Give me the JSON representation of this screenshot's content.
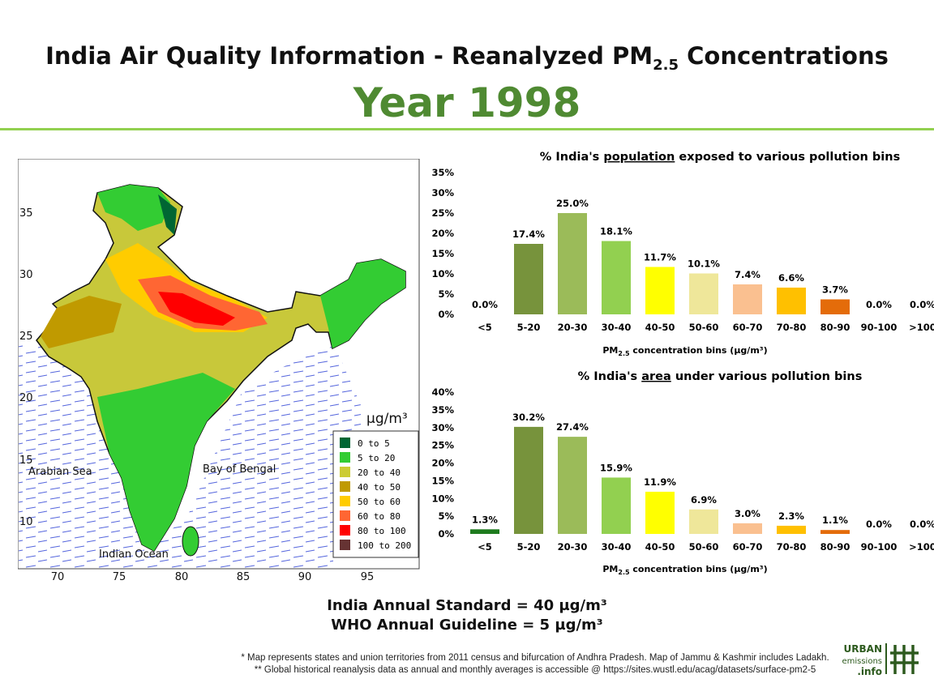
{
  "header": {
    "title_pre": "India Air Quality Information - Reanalyzed PM",
    "title_sub": "2.5",
    "title_post": " Concentrations",
    "year": "Year 1998"
  },
  "map": {
    "x_ticks": [
      "70",
      "75",
      "80",
      "85",
      "90",
      "95"
    ],
    "y_ticks": [
      "35",
      "30",
      "25",
      "20",
      "15",
      "10"
    ],
    "unit": "µg/m³",
    "labels": {
      "arabian_sea": "Arabian Sea",
      "bay_of_bengal": "Bay of Bengal",
      "indian_ocean": "Indian Ocean"
    },
    "legend": [
      {
        "label": "0  to  5",
        "color": "#006633"
      },
      {
        "label": "5  to  20",
        "color": "#33cc33"
      },
      {
        "label": "20  to  40",
        "color": "#cccc33"
      },
      {
        "label": "40  to  50",
        "color": "#c09a00"
      },
      {
        "label": "50  to  60",
        "color": "#ffcc00"
      },
      {
        "label": "60  to  80",
        "color": "#ff6633"
      },
      {
        "label": "80  to  100",
        "color": "#ff0000"
      },
      {
        "label": "100  to  200",
        "color": "#663333"
      }
    ]
  },
  "chart_data": [
    {
      "type": "bar",
      "title_pre": "% India's ",
      "title_em": "population",
      "title_post": " exposed to various pollution bins",
      "xlabel_pre": "PM",
      "xlabel_sub": "2.5",
      "xlabel_post": " concentration bins (µg/m³)",
      "categories": [
        "<5",
        "5-20",
        "20-30",
        "30-40",
        "40-50",
        "50-60",
        "60-70",
        "70-80",
        "80-90",
        "90-100",
        ">100"
      ],
      "values": [
        0.0,
        17.4,
        25.0,
        18.1,
        11.7,
        10.1,
        7.4,
        6.6,
        3.7,
        0.0,
        0.0
      ],
      "data_labels": [
        "0.0%",
        "17.4%",
        "25.0%",
        "18.1%",
        "11.7%",
        "10.1%",
        "7.4%",
        "6.6%",
        "3.7%",
        "0.0%",
        "0.0%"
      ],
      "ylim": [
        0,
        35
      ],
      "yticks": [
        "0%",
        "5%",
        "10%",
        "15%",
        "20%",
        "25%",
        "30%",
        "35%"
      ],
      "colors": [
        "#1e7b1e",
        "#77933c",
        "#9bbb59",
        "#92d050",
        "#ffff00",
        "#efe79a",
        "#fac090",
        "#ffc000",
        "#e46c0a",
        "#c0c0c0",
        "#c0c0c0"
      ]
    },
    {
      "type": "bar",
      "title_pre": "% India's ",
      "title_em": "area",
      "title_post": " under various pollution bins",
      "xlabel_pre": "PM",
      "xlabel_sub": "2.5",
      "xlabel_post": " concentration bins (µg/m³)",
      "categories": [
        "<5",
        "5-20",
        "20-30",
        "30-40",
        "40-50",
        "50-60",
        "60-70",
        "70-80",
        "80-90",
        "90-100",
        ">100"
      ],
      "values": [
        1.3,
        30.2,
        27.4,
        15.9,
        11.9,
        6.9,
        3.0,
        2.3,
        1.1,
        0.0,
        0.0
      ],
      "data_labels": [
        "1.3%",
        "30.2%",
        "27.4%",
        "15.9%",
        "11.9%",
        "6.9%",
        "3.0%",
        "2.3%",
        "1.1%",
        "0.0%",
        "0.0%"
      ],
      "ylim": [
        0,
        40
      ],
      "yticks": [
        "0%",
        "5%",
        "10%",
        "15%",
        "20%",
        "25%",
        "30%",
        "35%",
        "40%"
      ],
      "colors": [
        "#1e7b1e",
        "#77933c",
        "#9bbb59",
        "#92d050",
        "#ffff00",
        "#efe79a",
        "#fac090",
        "#ffc000",
        "#e46c0a",
        "#c0c0c0",
        "#c0c0c0"
      ]
    }
  ],
  "standards": {
    "india": "India Annual Standard = 40 µg/m³",
    "who": "WHO Annual Guideline = 5 µg/m³"
  },
  "footnotes": [
    "* Map represents states and union territories from 2011 census and bifurcation of Andhra Pradesh. Map of Jammu & Kashmir includes Ladakh.",
    "** Global historical reanalysis data as annual and monthly averages is accessible @ https://sites.wustl.edu/acag/datasets/surface-pm2-5"
  ],
  "logo": {
    "line1": "URBAN",
    "line2": "emissions",
    "line3": ".info"
  }
}
